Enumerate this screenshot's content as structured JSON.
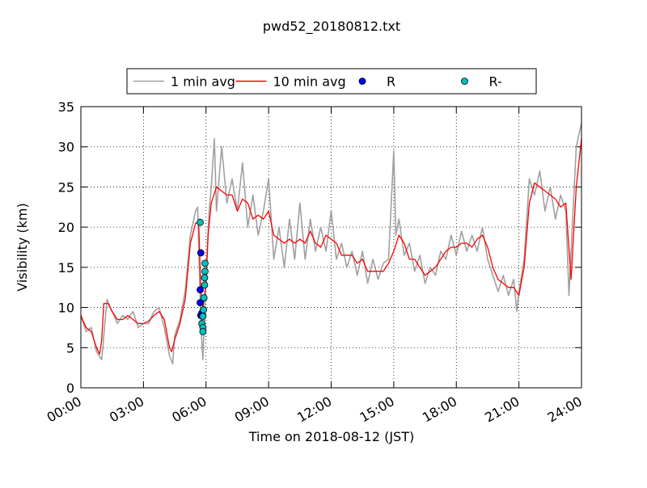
{
  "chart_data": {
    "type": "line",
    "title": "pwd52_20180812.txt",
    "x_label": "Time on 2018-08-12 (JST)",
    "y_label": "Visibility (km)",
    "xlim": [
      0,
      24
    ],
    "ylim": [
      0,
      35
    ],
    "xticks": [
      {
        "value": 0,
        "label": "00:00"
      },
      {
        "value": 3,
        "label": "03:00"
      },
      {
        "value": 6,
        "label": "06:00"
      },
      {
        "value": 9,
        "label": "09:00"
      },
      {
        "value": 12,
        "label": "12:00"
      },
      {
        "value": 15,
        "label": "15:00"
      },
      {
        "value": 18,
        "label": "18:00"
      },
      {
        "value": 21,
        "label": "21:00"
      },
      {
        "value": 24,
        "label": "24:00"
      }
    ],
    "yticks": [
      0,
      5,
      10,
      15,
      20,
      25,
      30,
      35
    ],
    "grid": true,
    "legend": "top",
    "series": [
      {
        "name": "1 min avg",
        "color": "#a0a0a0",
        "mode": "line",
        "x": [
          0,
          0.25,
          0.5,
          0.75,
          1,
          1.25,
          1.5,
          1.75,
          2,
          2.25,
          2.5,
          2.75,
          3,
          3.25,
          3.5,
          3.75,
          4,
          4.25,
          4.4,
          4.5,
          4.75,
          5,
          5.25,
          5.5,
          5.6,
          5.75,
          5.85,
          6,
          6.15,
          6.25,
          6.4,
          6.5,
          6.75,
          7,
          7.25,
          7.5,
          7.75,
          8,
          8.25,
          8.5,
          8.75,
          9,
          9.25,
          9.5,
          9.75,
          10,
          10.25,
          10.5,
          10.75,
          11,
          11.25,
          11.5,
          11.75,
          12,
          12.25,
          12.5,
          12.75,
          13,
          13.25,
          13.5,
          13.75,
          14,
          14.25,
          14.5,
          14.75,
          15,
          15.1,
          15.25,
          15.5,
          15.75,
          16,
          16.25,
          16.5,
          16.75,
          17,
          17.25,
          17.5,
          17.75,
          18,
          18.25,
          18.5,
          18.75,
          19,
          19.25,
          19.5,
          19.75,
          20,
          20.25,
          20.5,
          20.75,
          20.9,
          21,
          21.25,
          21.5,
          21.75,
          22,
          22.25,
          22.5,
          22.75,
          23,
          23.25,
          23.4,
          23.5,
          23.75,
          24
        ],
        "values": [
          9,
          7,
          7.5,
          4.5,
          3.5,
          11,
          9.5,
          8,
          9,
          8.5,
          9.5,
          7.5,
          8,
          8,
          9.5,
          10,
          7.5,
          4,
          3,
          6.5,
          8.5,
          12,
          19,
          22,
          22.5,
          8,
          3.5,
          14,
          22,
          25,
          31,
          22,
          30,
          23,
          26,
          22,
          28,
          20,
          24,
          19,
          22,
          26,
          16,
          20,
          15,
          21,
          16,
          23,
          16,
          21,
          17,
          20,
          17,
          22,
          16,
          18,
          15,
          17,
          14,
          17,
          13,
          16,
          13.5,
          15.5,
          16,
          29.5,
          19,
          21,
          16.5,
          18,
          14.5,
          16.5,
          13,
          15,
          14,
          17,
          16,
          19,
          16.5,
          19.5,
          17,
          19,
          17,
          20,
          16,
          14,
          12,
          14,
          11.5,
          13.5,
          9.5,
          12,
          16,
          26,
          24,
          27,
          22,
          25,
          21,
          24,
          22,
          11.5,
          17,
          30,
          33
        ]
      },
      {
        "name": "10 min avg",
        "color": "#ff0000",
        "mode": "line",
        "x": [
          0,
          0.25,
          0.5,
          0.75,
          0.9,
          1,
          1.1,
          1.3,
          1.5,
          1.75,
          2,
          2.25,
          2.5,
          2.75,
          3,
          3.25,
          3.5,
          3.75,
          4,
          4.25,
          4.35,
          4.5,
          4.75,
          5,
          5.25,
          5.5,
          5.65,
          5.75,
          5.85,
          6,
          6.1,
          6.25,
          6.5,
          6.75,
          7,
          7.25,
          7.5,
          7.75,
          8,
          8.25,
          8.5,
          8.75,
          9,
          9.25,
          9.5,
          9.75,
          10,
          10.25,
          10.5,
          10.75,
          11,
          11.25,
          11.5,
          11.75,
          12,
          12.25,
          12.5,
          12.75,
          13,
          13.25,
          13.5,
          13.75,
          14,
          14.25,
          14.5,
          14.75,
          15,
          15.25,
          15.5,
          15.75,
          16,
          16.25,
          16.5,
          16.75,
          17,
          17.25,
          17.5,
          17.75,
          18,
          18.25,
          18.5,
          18.75,
          19,
          19.25,
          19.5,
          19.75,
          20,
          20.25,
          20.5,
          20.75,
          21,
          21.25,
          21.5,
          21.75,
          22,
          22.25,
          22.5,
          22.75,
          23,
          23.25,
          23.5,
          23.75,
          24
        ],
        "values": [
          9,
          7.5,
          7,
          5,
          4.2,
          6,
          10.5,
          10.5,
          9.5,
          8.5,
          8.5,
          9,
          8.5,
          8,
          8,
          8.3,
          9,
          9.5,
          8.5,
          5,
          4.5,
          6,
          8,
          11,
          18,
          20.5,
          20.5,
          12,
          10,
          13,
          19,
          23,
          25,
          24.5,
          24,
          24,
          22,
          23.5,
          23,
          21,
          21.5,
          21,
          22,
          19,
          18.5,
          18,
          18.5,
          18,
          18.5,
          18,
          19.5,
          18,
          17.5,
          19,
          18.5,
          18,
          16.5,
          16.5,
          16.5,
          15.5,
          16,
          14.5,
          14.5,
          14.5,
          14.5,
          15.5,
          17,
          19,
          18,
          16,
          16,
          15,
          14,
          14.5,
          15,
          16,
          17,
          17.5,
          17.5,
          18,
          18,
          17.5,
          18.5,
          19,
          17.5,
          15,
          13.5,
          13,
          12.5,
          12.5,
          11.5,
          15,
          23,
          25.5,
          25,
          24.5,
          24,
          23.5,
          22.5,
          23,
          13.5,
          25,
          31
        ]
      },
      {
        "name": "R",
        "color": "#0000ff",
        "mode": "markers",
        "x": [
          5.75,
          5.72,
          5.72,
          5.75,
          5.8
        ],
        "values": [
          16.8,
          12.2,
          10.6,
          9,
          9.3
        ]
      },
      {
        "name": "R-",
        "color": "#00bfbf",
        "mode": "markers",
        "x": [
          5.72,
          5.95,
          5.95,
          5.93,
          5.93,
          5.9,
          5.88,
          5.85,
          5.8,
          5.85,
          5.85
        ],
        "values": [
          20.6,
          15.5,
          14.5,
          13.7,
          12.8,
          11.2,
          9.7,
          8.9,
          8,
          7.5,
          7
        ]
      }
    ]
  }
}
